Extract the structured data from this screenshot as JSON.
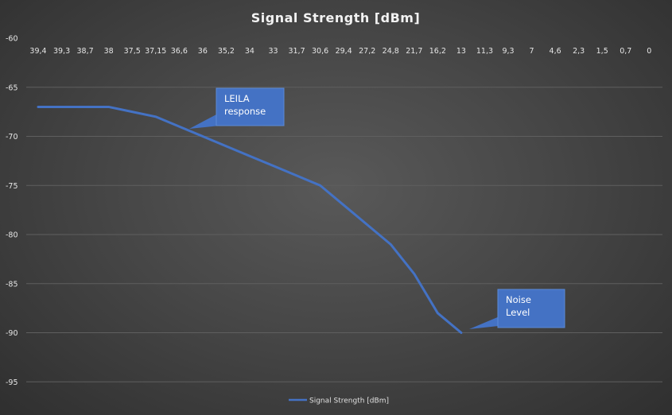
{
  "chart_data": {
    "type": "line",
    "title": "Signal Strength [dBm]",
    "xlabel": "",
    "ylabel": "",
    "categories": [
      "39,4",
      "39,3",
      "38,7",
      "38",
      "37,5",
      "37,15",
      "36,6",
      "36",
      "35,2",
      "34",
      "33",
      "31,7",
      "30,6",
      "29,4",
      "27,2",
      "24,8",
      "21,7",
      "16,2",
      "13",
      "11,3",
      "9,3",
      "7",
      "4,6",
      "2,3",
      "1,5",
      "0,7",
      "0"
    ],
    "y_ticks": [
      "-60",
      "-65",
      "-70",
      "-75",
      "-80",
      "-85",
      "-90",
      "-95"
    ],
    "ylim": [
      -96.5,
      -60
    ],
    "x_axis_position": "top",
    "grid": true,
    "legend_position": "bottom",
    "series": [
      {
        "name": "Signal Strength [dBm]",
        "color": "#4472c4",
        "values": [
          -67,
          -67,
          -67,
          -67,
          -67.5,
          -68,
          -69,
          -70,
          -71,
          -72,
          -73,
          -74,
          -75,
          -77,
          -79,
          -81,
          -84,
          -88,
          -90,
          null,
          null,
          null,
          null,
          null,
          null,
          null,
          null
        ]
      }
    ],
    "annotations": [
      {
        "id": "leila",
        "lines": [
          "LEILA",
          "response"
        ],
        "target_category": "36,6"
      },
      {
        "id": "noise",
        "lines": [
          "Noise",
          "Level"
        ],
        "target_category": "13"
      }
    ]
  },
  "colors": {
    "grid": "#5f5f5f",
    "callout_fill": "#4472c4",
    "callout_border": "#5b8ad6"
  }
}
